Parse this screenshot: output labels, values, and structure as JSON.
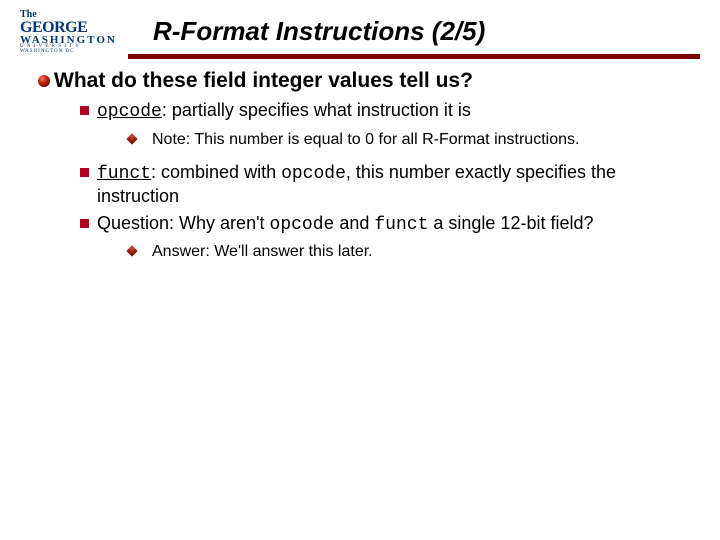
{
  "colors": {
    "rule": "#800000",
    "bullet_large": "#c02010",
    "bullet_square": "#b00020",
    "bullet_diamond": "#7a1408",
    "logo_navy": "#013674",
    "text": "#000000",
    "background": "#ffffff"
  },
  "typography": {
    "title_fontsize": 26,
    "lvl1_fontsize": 21,
    "lvl2_fontsize": 18,
    "lvl3_fontsize": 16,
    "title_style": "bold italic",
    "code_font": "Courier New"
  },
  "logo": {
    "line1": "The",
    "line2": "GEORGE",
    "line3": "WASHINGTON",
    "line4": "U N I V E R S I T Y",
    "line5": "WASHINGTON DC"
  },
  "title": "R-Format Instructions (2/5)",
  "lvl1_text": "What do these field integer values tell us?",
  "item1": {
    "code": "opcode",
    "rest": ": partially specifies what instruction it is",
    "sub": "Note: This number is equal to 0 for all R-Format instructions."
  },
  "item2": {
    "code": "funct",
    "mid1": ": combined with ",
    "code2": "opcode",
    "rest": ", this number exactly specifies the instruction"
  },
  "item3": {
    "pre": "Question: Why aren't ",
    "code1": "opcode",
    "mid": " and ",
    "code2": "funct",
    "rest": " a single 12-bit field?",
    "sub": "Answer: We'll answer this later."
  }
}
